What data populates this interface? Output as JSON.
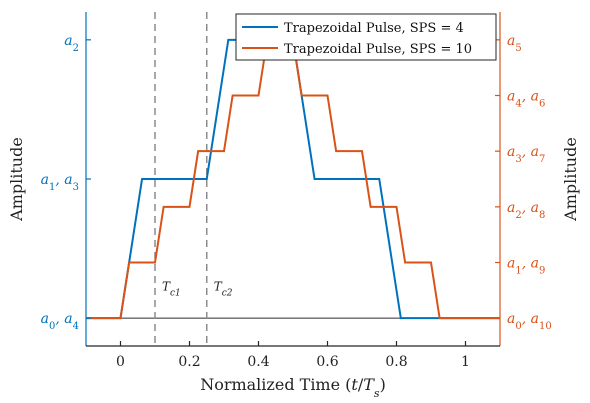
{
  "chart_data": {
    "type": "line",
    "xlabel": "Normalized Time (t/T_s)",
    "xlabel_display": "Normalized Time (𝑡/𝑇ₛ)",
    "ylabel_left": "Amplitude",
    "ylabel_right": "Amplitude",
    "xlim": [
      -0.1,
      1.1
    ],
    "x_ticks": [
      0,
      0.2,
      0.4,
      0.6,
      0.8,
      1
    ],
    "x_tick_labels": [
      "0",
      "0.2",
      "0.4",
      "0.6",
      "0.8",
      "1"
    ],
    "ylim": [
      -0.1,
      1.1
    ],
    "left_axis": {
      "color": "#0072BD",
      "ticks": [
        0,
        0.5,
        1
      ],
      "tick_labels": [
        "a0, a4",
        "a1, a3",
        "a2"
      ]
    },
    "right_axis": {
      "color": "#D95319",
      "ticks": [
        0,
        0.2,
        0.4,
        0.6,
        0.8,
        1
      ],
      "tick_labels": [
        "a0, a10",
        "a1, a9",
        "a2, a8",
        "a3, a7",
        "a4, a6",
        "a5"
      ]
    },
    "series": [
      {
        "name": "Trapezoidal Pulse, SPS = 4",
        "color": "#0072BD",
        "x": [
          -0.1,
          0,
          0.0625,
          0.25,
          0.3125,
          0.5,
          0.5625,
          0.75,
          0.8125,
          1.1
        ],
        "y": [
          0,
          0,
          0.5,
          0.5,
          1,
          1,
          0.5,
          0.5,
          0,
          0
        ]
      },
      {
        "name": "Trapezoidal Pulse, SPS = 10",
        "color": "#D95319",
        "x": [
          -0.1,
          0,
          0.025,
          0.1,
          0.125,
          0.2,
          0.225,
          0.3,
          0.325,
          0.4,
          0.425,
          0.5,
          0.525,
          0.6,
          0.625,
          0.7,
          0.725,
          0.8,
          0.825,
          0.9,
          0.925,
          1.1
        ],
        "y": [
          0,
          0,
          0.2,
          0.2,
          0.4,
          0.4,
          0.6,
          0.6,
          0.8,
          0.8,
          1,
          1,
          0.8,
          0.8,
          0.6,
          0.6,
          0.4,
          0.4,
          0.2,
          0.2,
          0,
          0
        ]
      }
    ],
    "markers": [
      {
        "x": 0.1,
        "label": "Tc1"
      },
      {
        "x": 0.25,
        "label": "Tc2"
      }
    ],
    "legend": {
      "placement": "top-right"
    },
    "grid": false,
    "baseline": {
      "y": 0,
      "color": "#666666"
    }
  }
}
